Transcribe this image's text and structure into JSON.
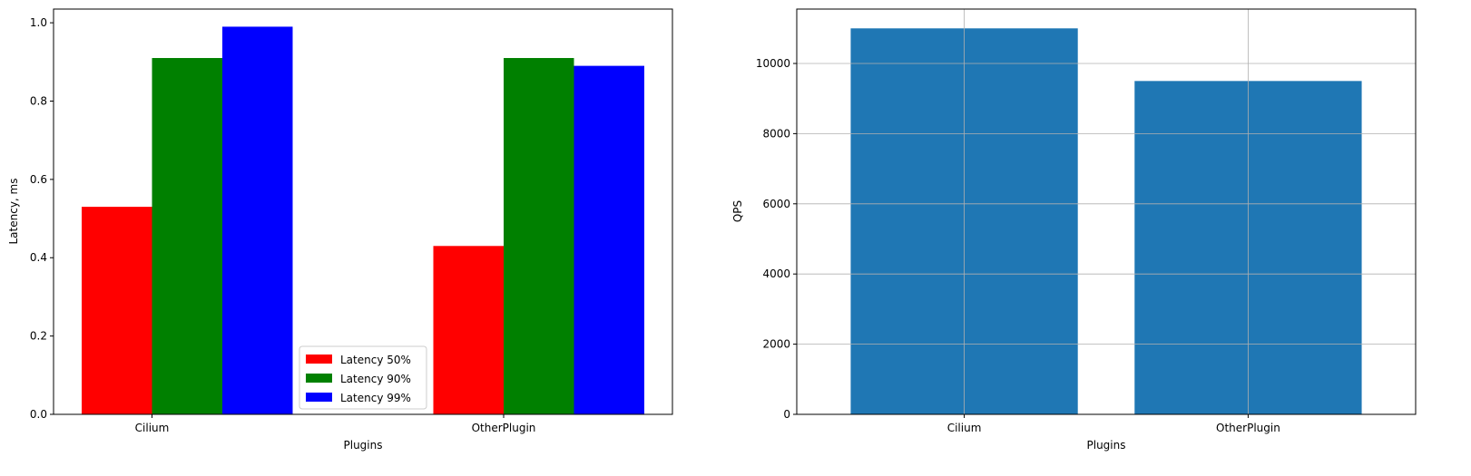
{
  "chart_data": [
    {
      "type": "bar",
      "categories": [
        "Cilium",
        "OtherPlugin"
      ],
      "series": [
        {
          "name": "Latency 50%",
          "color": "#ff0000",
          "values": [
            0.53,
            0.43
          ]
        },
        {
          "name": "Latency 90%",
          "color": "#008000",
          "values": [
            0.91,
            0.91
          ]
        },
        {
          "name": "Latency 99%",
          "color": "#0000ff",
          "values": [
            0.99,
            0.89
          ]
        }
      ],
      "xlabel": "Plugins",
      "ylabel": "Latency, ms",
      "ylim": [
        0,
        1.035
      ],
      "yticks": [
        "0.0",
        "0.2",
        "0.4",
        "0.6",
        "0.8",
        "1.0"
      ],
      "grid": false,
      "legend_position": "lower-center"
    },
    {
      "type": "bar",
      "categories": [
        "Cilium",
        "OtherPlugin"
      ],
      "series": [
        {
          "color": "#1f77b4",
          "values": [
            11000,
            9500
          ]
        }
      ],
      "xlabel": "Plugins",
      "ylabel": "QPS",
      "ylim": [
        0,
        11550
      ],
      "yticks": [
        "0",
        "2000",
        "4000",
        "6000",
        "8000",
        "10000"
      ],
      "grid": true
    }
  ]
}
